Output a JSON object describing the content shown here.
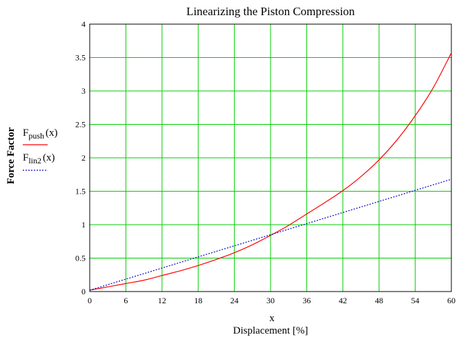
{
  "chart_data": {
    "type": "line",
    "title": "Linearizing the Piston Compression",
    "xlabel_var": "x",
    "xlabel": "Displacement [%]",
    "ylabel": "Force Factor",
    "xlim": [
      0,
      60
    ],
    "ylim": [
      0,
      4
    ],
    "x_ticks": [
      "0",
      "6",
      "12",
      "18",
      "24",
      "30",
      "36",
      "42",
      "48",
      "54",
      "60"
    ],
    "y_ticks": [
      "0",
      "0.5",
      "1",
      "1.5",
      "2",
      "2.5",
      "3",
      "3.5",
      "4"
    ],
    "x_tick_values": [
      0,
      6,
      12,
      18,
      24,
      30,
      36,
      42,
      48,
      54,
      60
    ],
    "y_tick_values": [
      0,
      0.5,
      1,
      1.5,
      2,
      2.5,
      3,
      3.5,
      4
    ],
    "grid": true,
    "grid_color": "#00cc00",
    "legend_position": "left",
    "series": [
      {
        "name": "Fpush(x)",
        "legend_main": "F",
        "legend_sub": "push",
        "legend_arg": "(x)",
        "color": "#ff0000",
        "style": "solid",
        "points": [
          [
            0,
            0.02
          ],
          [
            3,
            0.07
          ],
          [
            6,
            0.12
          ],
          [
            9,
            0.17
          ],
          [
            12,
            0.24
          ],
          [
            15,
            0.31
          ],
          [
            18,
            0.39
          ],
          [
            21,
            0.48
          ],
          [
            24,
            0.58
          ],
          [
            27,
            0.7
          ],
          [
            30,
            0.84
          ],
          [
            33,
            0.99
          ],
          [
            36,
            1.16
          ],
          [
            39,
            1.33
          ],
          [
            42,
            1.51
          ],
          [
            45,
            1.72
          ],
          [
            48,
            1.97
          ],
          [
            51,
            2.27
          ],
          [
            54,
            2.63
          ],
          [
            57,
            3.05
          ],
          [
            60,
            3.57
          ]
        ]
      },
      {
        "name": "Flin2(x)",
        "legend_main": "F",
        "legend_sub": "lin2",
        "legend_arg": "(x)",
        "color": "#0000cc",
        "style": "dotted",
        "points": [
          [
            0,
            0.02
          ],
          [
            30,
            0.85
          ],
          [
            60,
            1.68
          ]
        ]
      }
    ]
  }
}
